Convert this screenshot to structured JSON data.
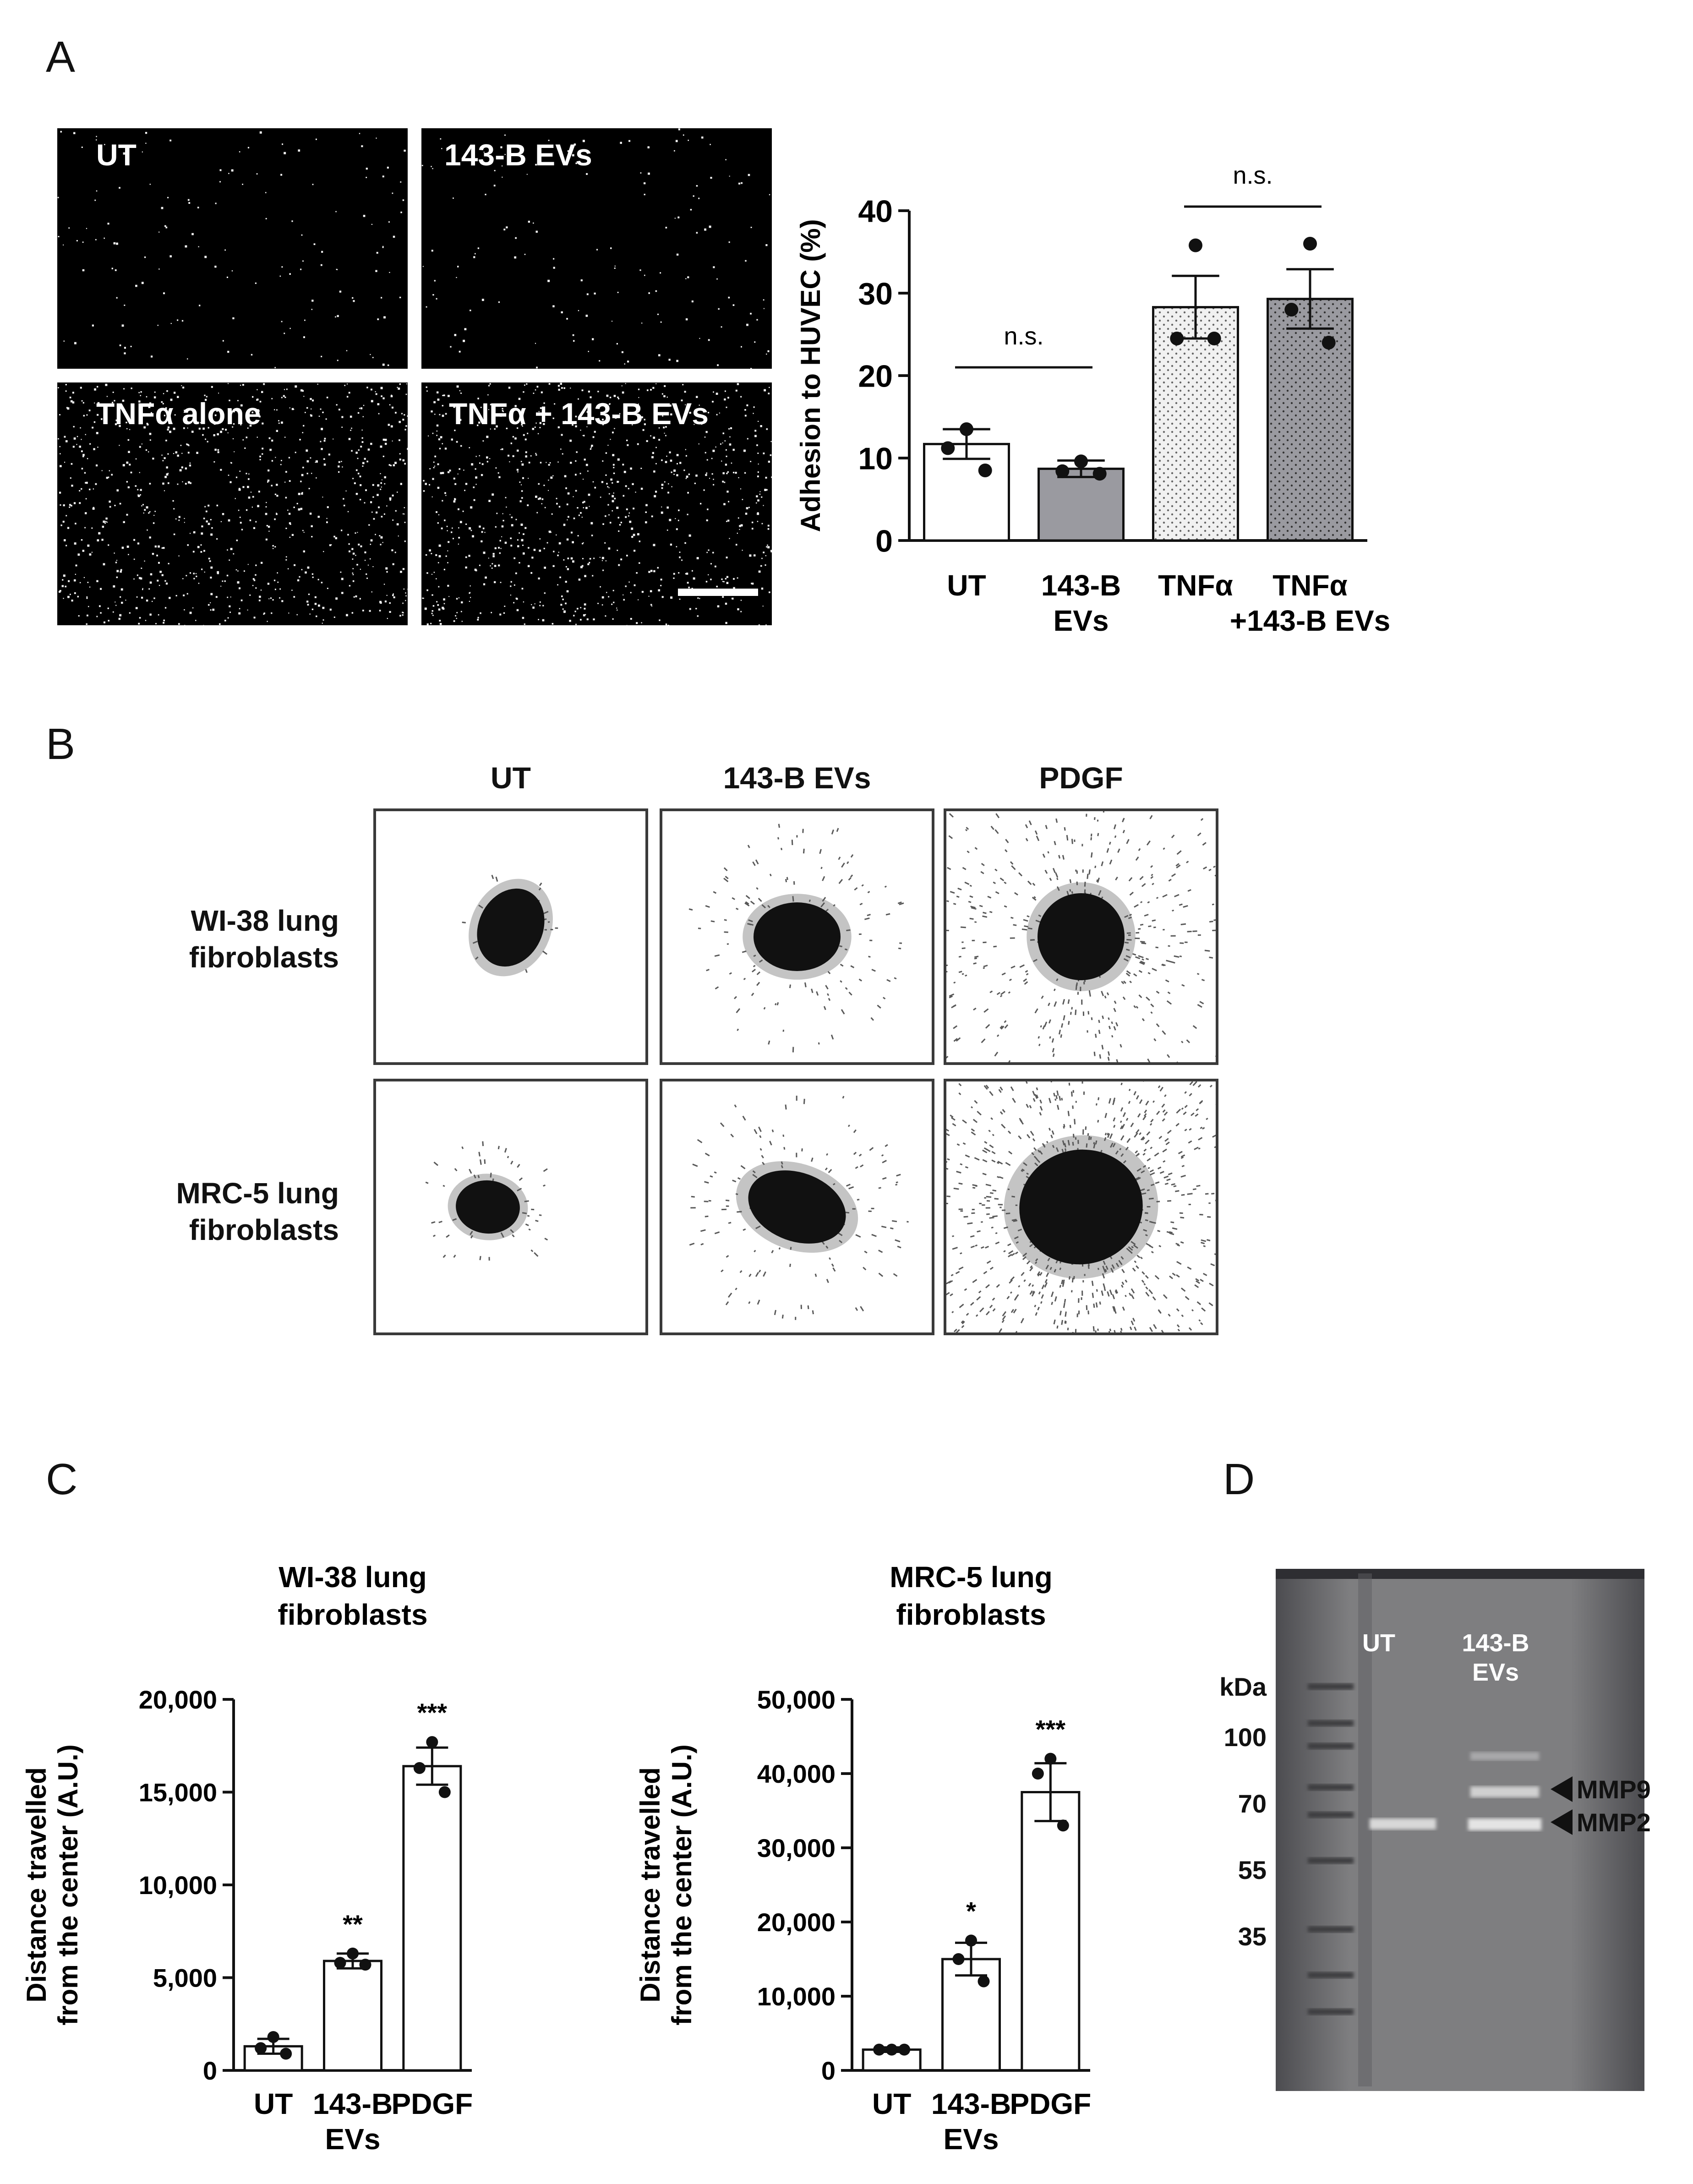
{
  "panels": {
    "A": "A",
    "B": "B",
    "C": "C",
    "D": "D"
  },
  "panel_a": {
    "images": [
      {
        "label": "UT",
        "density": 150
      },
      {
        "label": "143-B EVs",
        "density": 150
      },
      {
        "label": "TNFα alone",
        "density": 900
      },
      {
        "label": "TNFα + 143-B EVs",
        "density": 900
      }
    ]
  },
  "panel_b": {
    "columns": [
      "UT",
      "143-B EVs",
      "PDGF"
    ],
    "rows": [
      "WI-38 lung\nfibroblasts",
      "MRC-5 lung\nfibroblasts"
    ]
  },
  "panel_d": {
    "lanes": [
      "UT",
      "143-B\nEVs"
    ],
    "kda_label": "kDa",
    "markers": [
      "100",
      "70",
      "55",
      "35"
    ],
    "arrows": [
      "MMP9",
      "MMP2"
    ],
    "colors": {
      "gel_bg": "#7e7e80",
      "gel_edge": "#4c4c50"
    }
  },
  "chart_data": [
    {
      "id": "A",
      "type": "bar",
      "categories": [
        "UT",
        "143-B\nEVs",
        "TNFα",
        "TNFα\n+143-B EVs"
      ],
      "values": [
        11.7,
        8.7,
        28.3,
        29.3
      ],
      "errors": [
        1.8,
        1.0,
        3.8,
        3.6
      ],
      "points": [
        [
          13.5,
          11.2,
          8.5
        ],
        [
          9.6,
          8.4,
          8.1
        ],
        [
          35.8,
          24.5,
          24.5
        ],
        [
          36.0,
          28.0,
          24.0
        ]
      ],
      "fills": [
        "white",
        "gray",
        "lightdots",
        "graydots"
      ],
      "ylabel": "Adhesion to HUVEC (%)",
      "xlabel": "",
      "ylim": [
        0,
        40
      ],
      "yticks": [
        0,
        10,
        20,
        30,
        40
      ],
      "ytick_labels": [
        "0",
        "10",
        "20",
        "30",
        "40"
      ],
      "annotations": [
        {
          "text": "n.s.",
          "from": 0,
          "to": 1,
          "y": 21
        },
        {
          "text": "n.s.",
          "from": 2,
          "to": 3,
          "y": 40.5
        }
      ],
      "colors": {
        "gray": "#9a9aa0",
        "lightdots": "#ededed",
        "graydots": "#9a9aa0"
      }
    },
    {
      "id": "C1",
      "type": "bar",
      "title": "WI-38 lung\nfibroblasts",
      "categories": [
        "UT",
        "143-B\nEVs",
        "PDGF"
      ],
      "values": [
        1300,
        5900,
        16400
      ],
      "errors": [
        400,
        400,
        1000
      ],
      "points": [
        [
          1800,
          1200,
          900
        ],
        [
          6300,
          5800,
          5700
        ],
        [
          17700,
          16300,
          15000
        ]
      ],
      "significance": [
        "",
        "**",
        "***"
      ],
      "ylabel": "Distance travelled\nfrom the center (A.U.)",
      "xlabel": "",
      "ylim": [
        0,
        20000
      ],
      "yticks": [
        0,
        5000,
        10000,
        15000,
        20000
      ],
      "ytick_labels": [
        "0",
        "5,000",
        "10,000",
        "15,000",
        "20,000"
      ]
    },
    {
      "id": "C2",
      "type": "bar",
      "title": "MRC-5 lung\nfibroblasts",
      "categories": [
        "UT",
        "143-B\nEVs",
        "PDGF"
      ],
      "values": [
        2800,
        15000,
        37500
      ],
      "errors": [
        300,
        2200,
        3900
      ],
      "points": [
        [
          2800,
          2800,
          2800
        ],
        [
          17500,
          15000,
          12000
        ],
        [
          42000,
          40000,
          33000
        ]
      ],
      "significance": [
        "",
        "*",
        "***"
      ],
      "ylabel": "Distance travelled\nfrom the center (A.U.)",
      "xlabel": "",
      "ylim": [
        0,
        50000
      ],
      "yticks": [
        0,
        10000,
        20000,
        30000,
        40000,
        50000
      ],
      "ytick_labels": [
        "0",
        "10,000",
        "20,000",
        "30,000",
        "40,000",
        "50,000"
      ]
    }
  ]
}
